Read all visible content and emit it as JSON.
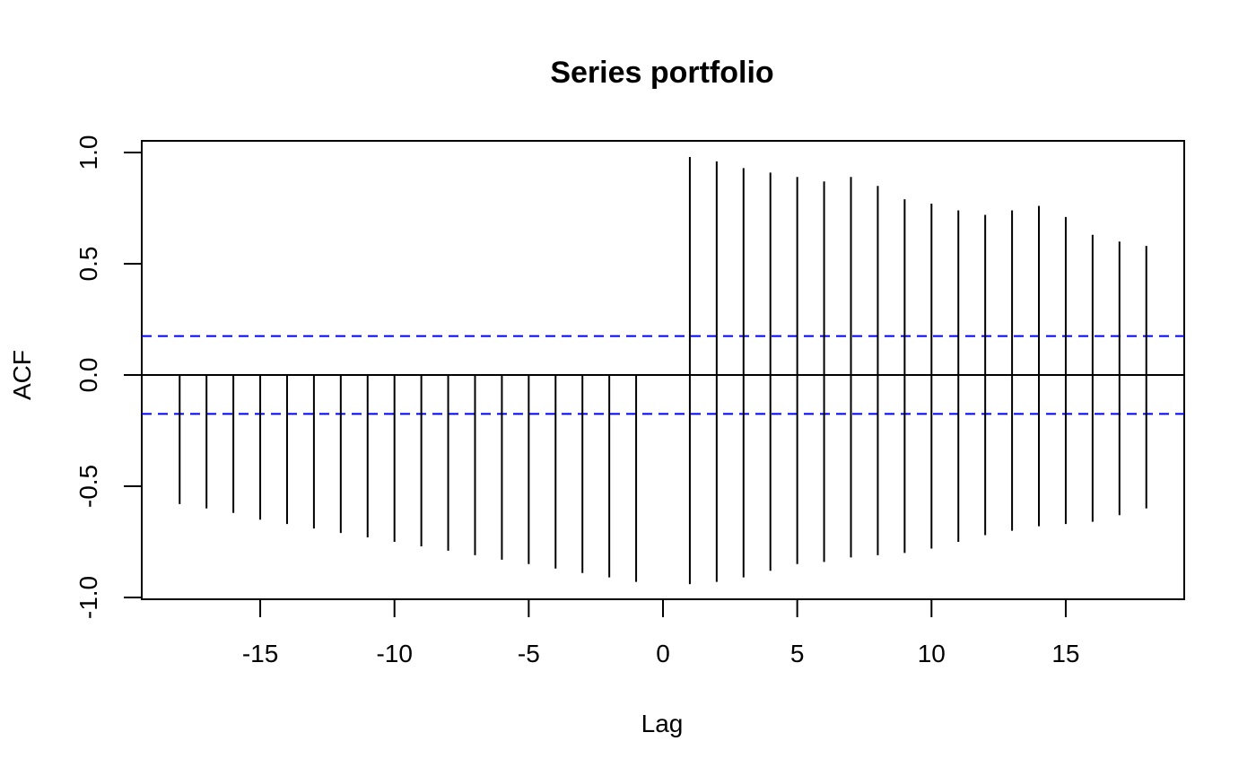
{
  "chart_data": {
    "type": "bar",
    "title": "Series portfolio",
    "xlabel": "Lag",
    "ylabel": "ACF",
    "xlim": [
      -19.5,
      19.5
    ],
    "ylim": [
      -1.0,
      1.0
    ],
    "x_ticks": [
      -15,
      -10,
      -5,
      0,
      5,
      10,
      15
    ],
    "y_ticks": [
      -1.0,
      -0.5,
      0.0,
      0.5,
      1.0
    ],
    "x_tick_labels": [
      "-15",
      "-10",
      "-5",
      "0",
      "5",
      "10",
      "15"
    ],
    "y_tick_labels": [
      "-1.0",
      "-0.5",
      "0.0",
      "0.5",
      "1.0"
    ],
    "confidence_limit": 0.175,
    "confidence_color": "#0000ff",
    "spike_color": "#000000",
    "grid": false,
    "spikes": [
      {
        "lag": -18,
        "values": [
          -0.58
        ]
      },
      {
        "lag": -17,
        "values": [
          -0.6
        ]
      },
      {
        "lag": -16,
        "values": [
          -0.62
        ]
      },
      {
        "lag": -15,
        "values": [
          -0.65
        ]
      },
      {
        "lag": -14,
        "values": [
          -0.67
        ]
      },
      {
        "lag": -13,
        "values": [
          -0.69
        ]
      },
      {
        "lag": -12,
        "values": [
          -0.71
        ]
      },
      {
        "lag": -11,
        "values": [
          -0.73
        ]
      },
      {
        "lag": -10,
        "values": [
          -0.75
        ]
      },
      {
        "lag": -9,
        "values": [
          -0.77
        ]
      },
      {
        "lag": -8,
        "values": [
          -0.79
        ]
      },
      {
        "lag": -7,
        "values": [
          -0.81
        ]
      },
      {
        "lag": -6,
        "values": [
          -0.83
        ]
      },
      {
        "lag": -5,
        "values": [
          -0.85
        ]
      },
      {
        "lag": -4,
        "values": [
          -0.87
        ]
      },
      {
        "lag": -3,
        "values": [
          -0.89
        ]
      },
      {
        "lag": -2,
        "values": [
          -0.91
        ]
      },
      {
        "lag": -1,
        "values": [
          -0.93
        ]
      },
      {
        "lag": 1,
        "values": [
          0.98,
          -0.94
        ]
      },
      {
        "lag": 2,
        "values": [
          0.96,
          -0.93
        ]
      },
      {
        "lag": 3,
        "values": [
          0.93,
          -0.91
        ]
      },
      {
        "lag": 4,
        "values": [
          0.91,
          -0.88
        ]
      },
      {
        "lag": 5,
        "values": [
          0.89,
          -0.85
        ]
      },
      {
        "lag": 6,
        "values": [
          0.87,
          -0.84
        ]
      },
      {
        "lag": 7,
        "values": [
          0.89,
          -0.82
        ]
      },
      {
        "lag": 8,
        "values": [
          0.85,
          -0.81
        ]
      },
      {
        "lag": 9,
        "values": [
          0.79,
          -0.8
        ]
      },
      {
        "lag": 10,
        "values": [
          0.77,
          -0.78
        ]
      },
      {
        "lag": 11,
        "values": [
          0.74,
          -0.75
        ]
      },
      {
        "lag": 12,
        "values": [
          0.72,
          -0.72
        ]
      },
      {
        "lag": 13,
        "values": [
          0.74,
          -0.7
        ]
      },
      {
        "lag": 14,
        "values": [
          0.76,
          -0.68
        ]
      },
      {
        "lag": 15,
        "values": [
          0.71,
          -0.67
        ]
      },
      {
        "lag": 16,
        "values": [
          0.63,
          -0.66
        ]
      },
      {
        "lag": 17,
        "values": [
          0.6,
          -0.63
        ]
      },
      {
        "lag": 18,
        "values": [
          0.58,
          -0.6
        ]
      }
    ]
  }
}
